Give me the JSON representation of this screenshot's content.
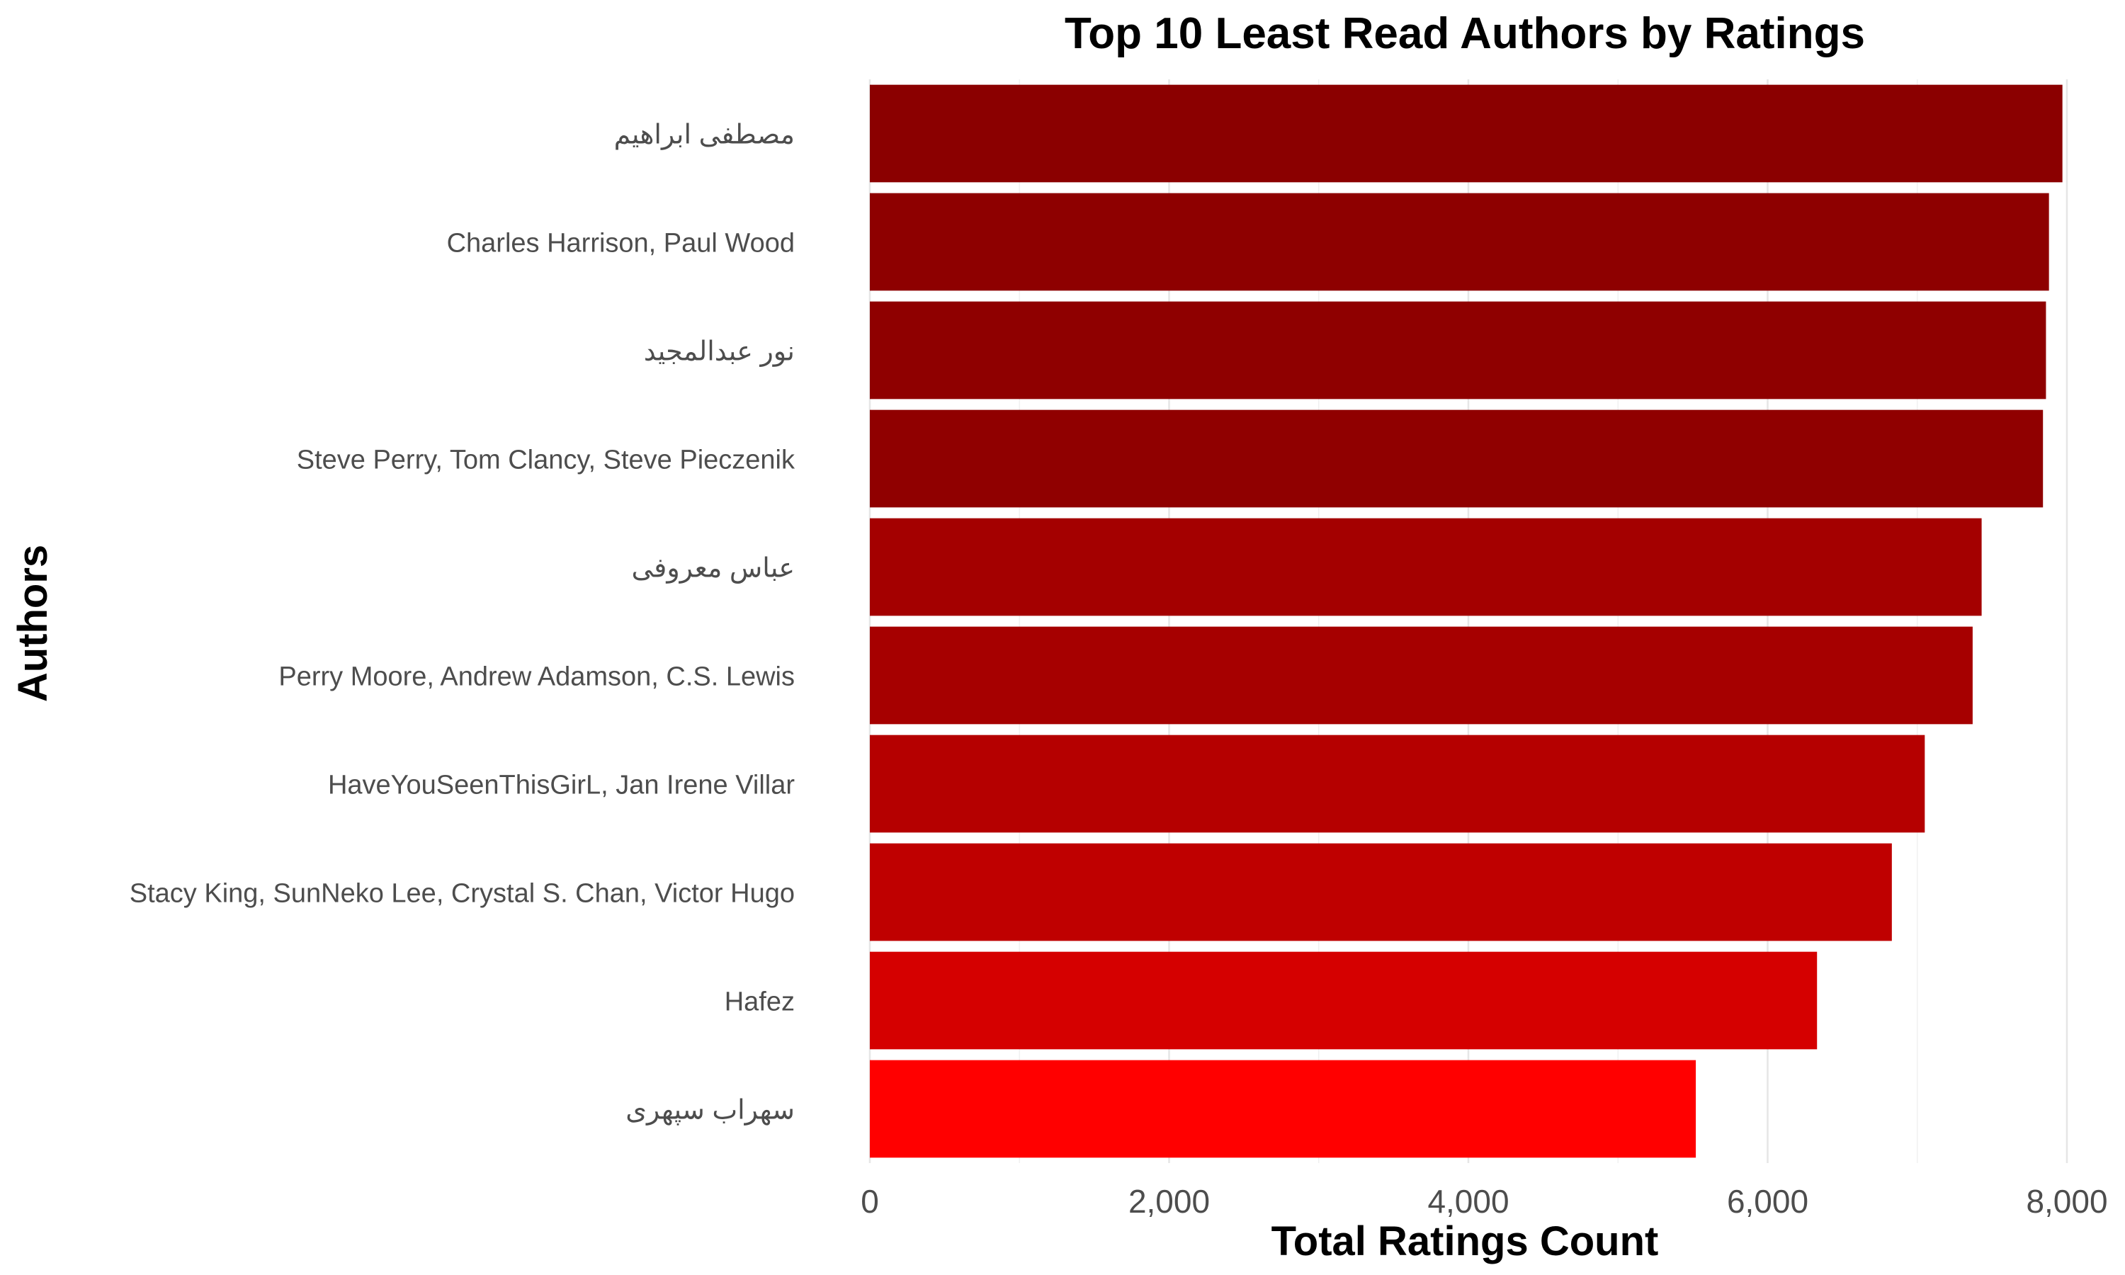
{
  "chart_data": {
    "type": "bar",
    "orientation": "horizontal",
    "title": "Top 10 Least Read Authors by Ratings",
    "xlabel": "Total Ratings Count",
    "ylabel": "Authors",
    "xlim": [
      0,
      8000
    ],
    "x_ticks": [
      0,
      2000,
      4000,
      6000,
      8000
    ],
    "x_tick_labels": [
      "0",
      "2,000",
      "4,000",
      "6,000",
      "8,000"
    ],
    "grid": true,
    "legend": "none",
    "categories": [
      "مصطفی ابراهیم",
      "Charles Harrison, Paul Wood",
      "نور عبدالمجيد",
      "Steve Perry, Tom Clancy, Steve Pieczenik",
      "عباس معروفی",
      "Perry Moore, Andrew Adamson, C.S. Lewis",
      "HaveYouSeenThisGirL, Jan Irene Villar",
      "Stacy King, SunNeko Lee, Crystal S. Chan, Victor Hugo",
      "Hafez",
      "سهراب سپهری"
    ],
    "values": [
      7970,
      7880,
      7860,
      7840,
      7430,
      7370,
      7050,
      6830,
      6330,
      5520
    ],
    "colors": [
      "#8B0000",
      "#8E0000",
      "#8F0000",
      "#900000",
      "#A40000",
      "#A60000",
      "#B50000",
      "#BF0000",
      "#D50000",
      "#FF0000"
    ]
  }
}
